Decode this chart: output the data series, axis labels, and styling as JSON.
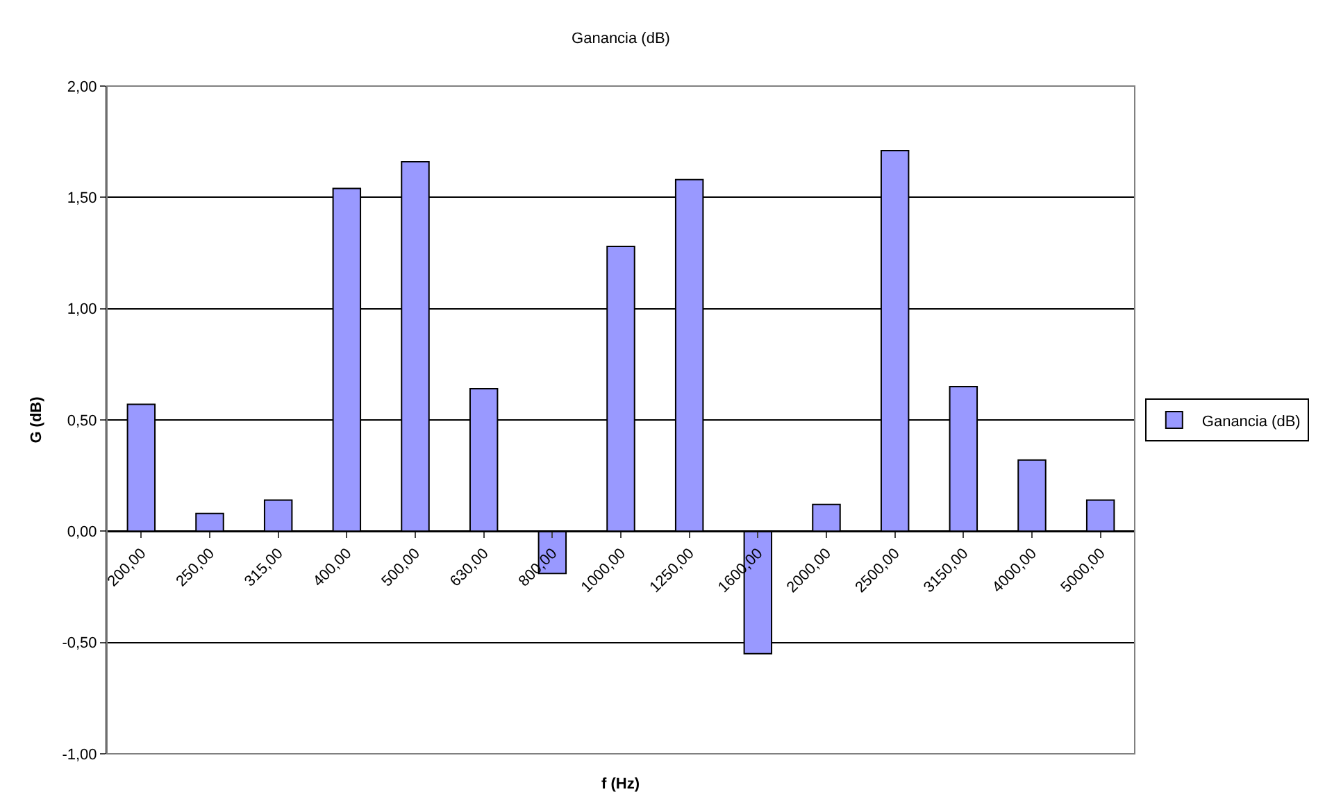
{
  "chart_data": {
    "type": "bar",
    "title": "Ganancia (dB)",
    "xlabel": "f (Hz)",
    "ylabel": "G (dB)",
    "categories": [
      "200,00",
      "250,00",
      "315,00",
      "400,00",
      "500,00",
      "630,00",
      "800,00",
      "1000,00",
      "1250,00",
      "1600,00",
      "2000,00",
      "2500,00",
      "3150,00",
      "4000,00",
      "5000,00"
    ],
    "series": [
      {
        "name": "Ganancia (dB)",
        "color": "#9999ff",
        "values": [
          0.57,
          0.08,
          0.14,
          1.54,
          1.66,
          0.64,
          -0.19,
          1.28,
          1.58,
          -0.55,
          0.12,
          1.71,
          0.65,
          0.32,
          0.14
        ]
      }
    ],
    "ylim": [
      -1,
      2
    ],
    "yticks": [
      {
        "value": -1,
        "label": "-1,00"
      },
      {
        "value": -0.5,
        "label": "-0,50"
      },
      {
        "value": 0,
        "label": "0,00"
      },
      {
        "value": 0.5,
        "label": "0,50"
      },
      {
        "value": 1,
        "label": "1,00"
      },
      {
        "value": 1.5,
        "label": "1,50"
      },
      {
        "value": 2,
        "label": "2,00"
      }
    ],
    "grid": "y",
    "legend": "right"
  }
}
